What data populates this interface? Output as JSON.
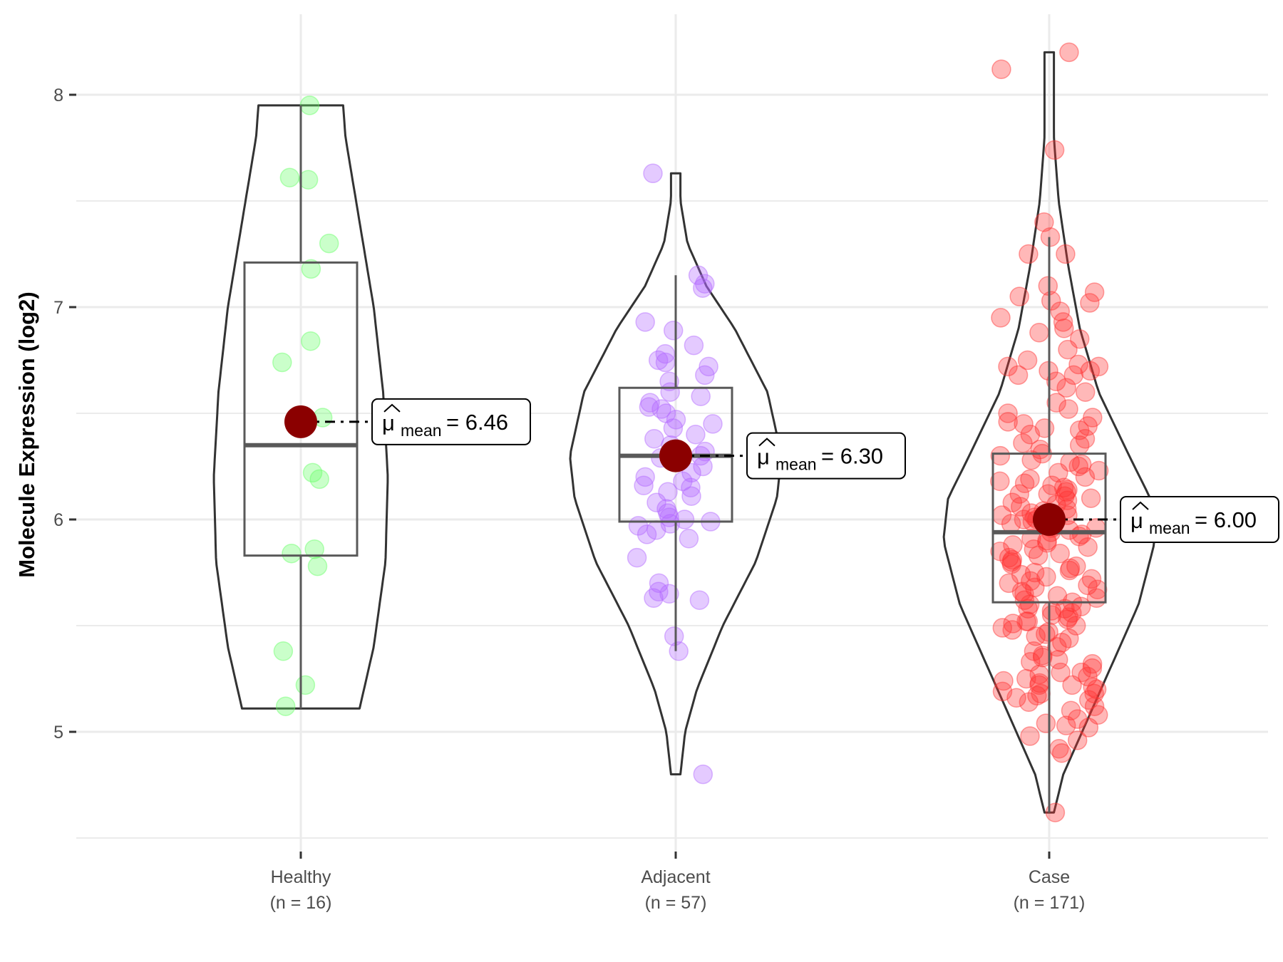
{
  "chart_data": {
    "type": "violin-box-scatter",
    "title": "",
    "xlabel": "",
    "ylabel": "Molecule Expression (log2)",
    "ylim": [
      4.45,
      8.42
    ],
    "yticks": [
      5,
      6,
      7,
      8
    ],
    "grid": true,
    "legend": "none",
    "mean_label_prefix": "μ̂",
    "mean_label_sub": "mean",
    "groups": [
      {
        "name": "Healthy",
        "n_label": "(n = 16)",
        "color": "#66ff66",
        "mean": 6.46,
        "mean_label": "= 6.46",
        "box": {
          "whisker_low": 5.11,
          "q1": 5.83,
          "median": 6.35,
          "q3": 7.21,
          "whisker_high": 7.95
        },
        "violin": {
          "min": 5.11,
          "max": 7.95,
          "shape": [
            [
              5.11,
              0.25
            ],
            [
              5.4,
              0.31
            ],
            [
              5.8,
              0.36
            ],
            [
              6.2,
              0.37
            ],
            [
              6.6,
              0.35
            ],
            [
              7.0,
              0.31
            ],
            [
              7.4,
              0.25
            ],
            [
              7.8,
              0.19
            ],
            [
              7.95,
              0.18
            ]
          ]
        },
        "points": [
          7.95,
          7.61,
          7.6,
          7.3,
          7.18,
          6.84,
          6.74,
          6.48,
          6.22,
          6.19,
          5.86,
          5.84,
          5.78,
          5.38,
          5.22,
          5.12
        ]
      },
      {
        "name": "Adjacent",
        "n_label": "(n = 57)",
        "color": "#b266ff",
        "mean": 6.3,
        "mean_label": "= 6.30",
        "box": {
          "whisker_low": 5.38,
          "q1": 5.99,
          "median": 6.3,
          "q3": 6.62,
          "whisker_high": 7.15
        },
        "violin": {
          "min": 4.8,
          "max": 7.63,
          "shape": [
            [
              4.8,
              0.02
            ],
            [
              5.0,
              0.04
            ],
            [
              5.2,
              0.09
            ],
            [
              5.5,
              0.2
            ],
            [
              5.8,
              0.34
            ],
            [
              6.1,
              0.43
            ],
            [
              6.3,
              0.45
            ],
            [
              6.6,
              0.39
            ],
            [
              6.9,
              0.25
            ],
            [
              7.1,
              0.13
            ],
            [
              7.3,
              0.05
            ],
            [
              7.5,
              0.02
            ],
            [
              7.63,
              0.02
            ]
          ]
        },
        "points": [
          7.63,
          7.15,
          7.11,
          7.09,
          6.93,
          6.89,
          6.82,
          6.78,
          6.75,
          6.74,
          6.72,
          6.68,
          6.65,
          6.6,
          6.58,
          6.55,
          6.53,
          6.52,
          6.5,
          6.47,
          6.45,
          6.43,
          6.4,
          6.38,
          6.35,
          6.32,
          6.3,
          6.29,
          6.27,
          6.25,
          6.22,
          6.2,
          6.18,
          6.16,
          6.15,
          6.13,
          6.11,
          6.08,
          6.05,
          6.03,
          6.01,
          5.99,
          5.98,
          5.97,
          5.95,
          5.93,
          5.91,
          5.82,
          5.7,
          5.66,
          5.65,
          5.63,
          5.62,
          5.45,
          5.38,
          4.8,
          6.0
        ]
      },
      {
        "name": "Case",
        "n_label": "(n = 171)",
        "color": "#ff3333",
        "mean": 6.0,
        "mean_label": "= 6.00",
        "box": {
          "whisker_low": 4.62,
          "q1": 5.61,
          "median": 5.94,
          "q3": 6.31,
          "whisker_high": 7.33
        },
        "violin": {
          "min": 4.62,
          "max": 8.2,
          "shape": [
            [
              4.62,
              0.02
            ],
            [
              4.8,
              0.06
            ],
            [
              5.0,
              0.14
            ],
            [
              5.3,
              0.26
            ],
            [
              5.6,
              0.38
            ],
            [
              5.9,
              0.45
            ],
            [
              6.1,
              0.43
            ],
            [
              6.3,
              0.34
            ],
            [
              6.6,
              0.21
            ],
            [
              6.9,
              0.13
            ],
            [
              7.2,
              0.08
            ],
            [
              7.5,
              0.04
            ],
            [
              7.8,
              0.02
            ],
            [
              8.2,
              0.02
            ]
          ]
        },
        "points": [
          8.2,
          8.12,
          7.74,
          7.4,
          7.33,
          7.25,
          7.25,
          7.1,
          7.07,
          7.05,
          7.03,
          7.02,
          6.98,
          6.95,
          6.93,
          6.9,
          6.88,
          6.85,
          6.8,
          6.75,
          6.73,
          6.72,
          6.7,
          6.68,
          6.65,
          6.62,
          6.6,
          6.55,
          6.52,
          6.5,
          6.48,
          6.46,
          6.45,
          6.43,
          6.42,
          6.4,
          6.38,
          6.36,
          6.35,
          6.33,
          6.31,
          6.3,
          6.28,
          6.27,
          6.26,
          6.25,
          6.23,
          6.22,
          6.2,
          6.19,
          6.18,
          6.17,
          6.16,
          6.15,
          6.14,
          6.13,
          6.12,
          6.11,
          6.1,
          6.09,
          6.08,
          6.07,
          6.06,
          6.05,
          6.04,
          6.03,
          6.02,
          6.01,
          6.0,
          6.0,
          5.99,
          5.98,
          5.97,
          5.96,
          5.95,
          5.94,
          5.93,
          5.92,
          5.91,
          5.9,
          5.89,
          5.88,
          5.87,
          5.86,
          5.85,
          5.84,
          5.83,
          5.82,
          5.81,
          5.8,
          5.79,
          5.78,
          5.77,
          5.76,
          5.75,
          5.74,
          5.73,
          5.72,
          5.71,
          5.7,
          5.69,
          5.68,
          5.67,
          5.66,
          5.65,
          5.64,
          5.63,
          5.62,
          5.61,
          5.6,
          5.59,
          5.58,
          5.57,
          5.56,
          5.55,
          5.54,
          5.53,
          5.52,
          5.51,
          5.5,
          5.49,
          5.48,
          5.47,
          5.46,
          5.45,
          5.44,
          5.42,
          5.4,
          5.38,
          5.36,
          5.35,
          5.34,
          5.33,
          5.32,
          5.3,
          5.28,
          5.27,
          5.26,
          5.25,
          5.24,
          5.23,
          5.22,
          5.21,
          5.2,
          5.19,
          5.18,
          5.17,
          5.16,
          5.15,
          5.14,
          5.12,
          5.1,
          5.08,
          5.06,
          5.04,
          5.03,
          5.02,
          4.98,
          4.96,
          4.92,
          4.9,
          4.62,
          6.72,
          6.7,
          6.68,
          6.02,
          5.58,
          5.52,
          5.28,
          5.22,
          5.18,
          5.96,
          6.44,
          6.12
        ]
      }
    ]
  }
}
